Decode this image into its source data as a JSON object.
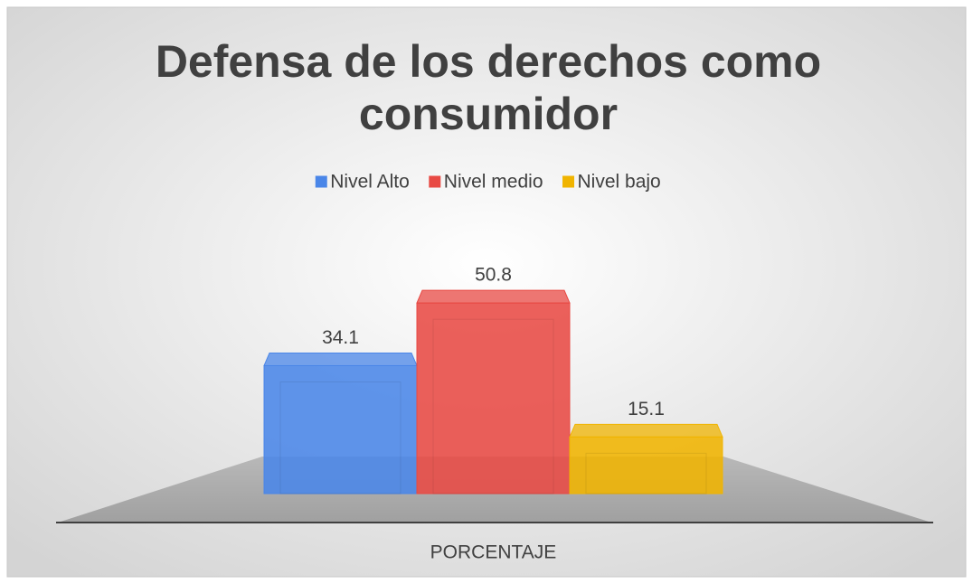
{
  "chart_data": {
    "type": "bar3d",
    "title": "Defensa de los derechos como consumidor",
    "title_lines": [
      "Defensa de los derechos como",
      "consumidor"
    ],
    "categories": [
      "PORCENTAJE"
    ],
    "series": [
      {
        "name": "Nivel Alto",
        "color": "#4a86e8",
        "values": [
          34.1
        ]
      },
      {
        "name": "Nivel medio",
        "color": "#e84a44",
        "values": [
          50.8
        ]
      },
      {
        "name": "Nivel bajo",
        "color": "#f0b400",
        "values": [
          15.1
        ]
      }
    ],
    "legend": "top"
  }
}
